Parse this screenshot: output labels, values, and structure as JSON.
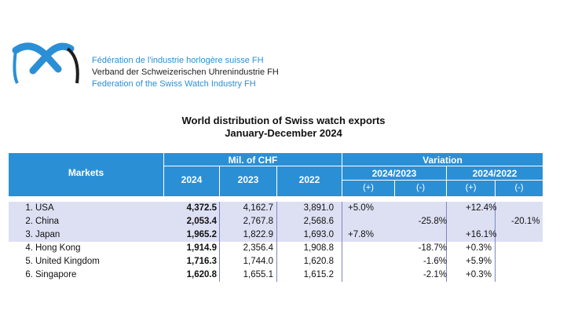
{
  "organization": {
    "name_fr": "Fédération de l'industrie horlogère suisse FH",
    "name_de": "Verband der Schweizerischen Uhrenindustrie FH",
    "name_en": "Federation of the Swiss Watch Industry FH"
  },
  "title": {
    "line1": "World distribution of Swiss watch exports",
    "line2": "January-December 2024"
  },
  "table": {
    "header": {
      "markets": "Markets",
      "mil_chf": "Mil. of CHF",
      "variation": "Variation",
      "years": [
        "2024",
        "2023",
        "2022"
      ],
      "periods": [
        "2024/2023",
        "2024/2022"
      ],
      "signs": [
        "(+)",
        "(-)",
        "(+)",
        "(-)"
      ]
    },
    "rows": [
      {
        "rank": "1.",
        "market": "USA",
        "v2024": "4,372.5",
        "v2023": "4,162.7",
        "v2022": "3,891.0",
        "var23_plus": "+5.0%",
        "var23_minus": "",
        "var22_plus": "+12.4%",
        "var22_minus": ""
      },
      {
        "rank": "2.",
        "market": "China",
        "v2024": "2,053.4",
        "v2023": "2,767.8",
        "v2022": "2,568.6",
        "var23_plus": "",
        "var23_minus": "-25.8%",
        "var22_plus": "",
        "var22_minus": "-20.1%"
      },
      {
        "rank": "3.",
        "market": "Japan",
        "v2024": "1,965.2",
        "v2023": "1,822.9",
        "v2022": "1,693.0",
        "var23_plus": "+7.8%",
        "var23_minus": "",
        "var22_plus": "+16.1%",
        "var22_minus": ""
      },
      {
        "rank": "4.",
        "market": "Hong Kong",
        "v2024": "1,914.9",
        "v2023": "2,356.4",
        "v2022": "1,908.8",
        "var23_plus": "",
        "var23_minus": "-18.7%",
        "var22_plus": "+0.3%",
        "var22_minus": ""
      },
      {
        "rank": "5.",
        "market": "United Kingdom",
        "v2024": "1,716.3",
        "v2023": "1,744.0",
        "v2022": "1,620.8",
        "var23_plus": "",
        "var23_minus": "-1.6%",
        "var22_plus": "+5.9%",
        "var22_minus": ""
      },
      {
        "rank": "6.",
        "market": "Singapore",
        "v2024": "1,620.8",
        "v2023": "1,655.1",
        "v2022": "1,615.2",
        "var23_plus": "",
        "var23_minus": "-2.1%",
        "var22_plus": "+0.3%",
        "var22_minus": ""
      }
    ]
  },
  "colors": {
    "brand_blue": "#2b8fd6",
    "highlight_band": "#dde0f3",
    "separator": "#7d86c0"
  }
}
